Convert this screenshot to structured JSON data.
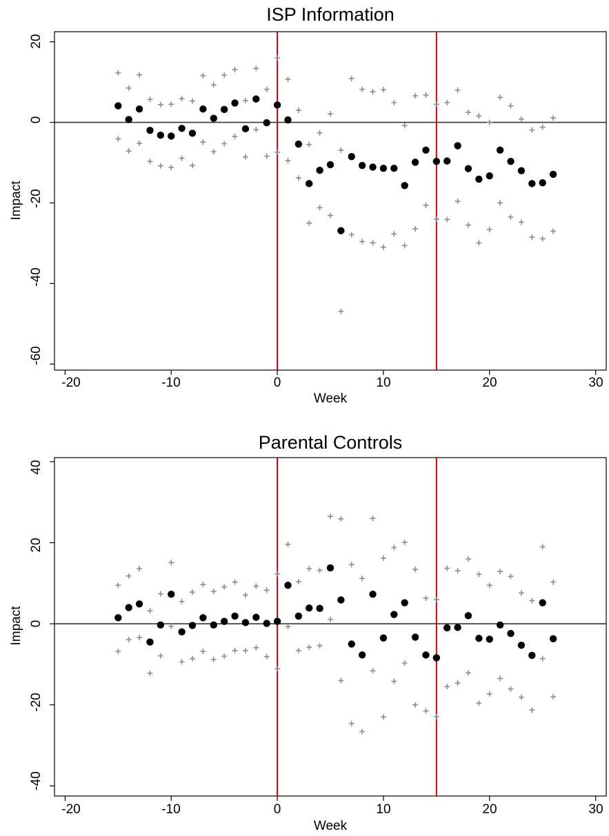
{
  "chart_data": [
    {
      "type": "scatter",
      "title": "ISP Information",
      "xlabel": "Week",
      "ylabel": "Impact",
      "xlim": [
        -21,
        31
      ],
      "ylim": [
        -61.5,
        22.5
      ],
      "xticks": [
        -20,
        -10,
        0,
        10,
        20,
        30
      ],
      "xtick_labels": [
        "-20",
        "-10",
        "0",
        "10",
        "20",
        "30"
      ],
      "yticks": [
        20,
        0,
        -20,
        -40,
        -60
      ],
      "ytick_labels": [
        "20",
        "0",
        "-20",
        "-40",
        "-60"
      ],
      "grid": false,
      "reference_lines": {
        "horizontal_y": 0,
        "vertical_x": [
          0,
          15
        ],
        "vertical_color": "#cc0000"
      },
      "colors": {
        "estimate": "#000000",
        "interval": "#8c8c8c"
      },
      "x": [
        -15,
        -14,
        -13,
        -12,
        -11,
        -10,
        -9,
        -8,
        -7,
        -6,
        -5,
        -4,
        -3,
        -2,
        -1,
        0,
        1,
        2,
        3,
        4,
        5,
        6,
        7,
        8,
        9,
        10,
        11,
        12,
        13,
        14,
        15,
        16,
        17,
        18,
        19,
        20,
        21,
        22,
        23,
        24,
        25,
        26
      ],
      "series": [
        {
          "role": "estimate",
          "marker": "dot",
          "values": [
            4.1,
            0.7,
            3.3,
            -2.0,
            -3.2,
            -3.4,
            -1.5,
            -2.7,
            3.3,
            1.0,
            3.2,
            4.8,
            -1.6,
            5.8,
            -0.1,
            4.3,
            0.6,
            -5.4,
            -15.2,
            -11.9,
            -10.5,
            -26.9,
            -8.5,
            -10.7,
            -11.1,
            -11.4,
            -11.4,
            -15.7,
            -9.9,
            -6.9,
            -9.7,
            -9.6,
            -5.8,
            -11.5,
            -14.1,
            -13.3,
            -6.9,
            -9.7,
            -12.0,
            -15.2,
            -15.0,
            -12.9
          ]
        },
        {
          "role": "upper-bound",
          "marker": "plus",
          "values": [
            12.3,
            8.5,
            11.8,
            5.7,
            4.4,
            4.5,
            5.9,
            5.3,
            11.6,
            9.3,
            11.7,
            13.1,
            5.4,
            13.4,
            8.2,
            16.0,
            10.7,
            3.0,
            -5.5,
            -2.6,
            2.1,
            -6.9,
            10.9,
            8.2,
            7.6,
            8.1,
            4.9,
            -0.8,
            6.6,
            6.8,
            4.5,
            4.9,
            8.0,
            2.5,
            1.6,
            0.0,
            6.2,
            4.1,
            0.8,
            -1.9,
            -1.2,
            1.1
          ]
        },
        {
          "role": "lower-bound",
          "marker": "plus",
          "values": [
            -4.1,
            -7.1,
            -5.2,
            -9.7,
            -10.8,
            -11.2,
            -8.9,
            -10.7,
            -4.9,
            -7.3,
            -5.3,
            -3.5,
            -8.6,
            -1.8,
            -8.4,
            -7.4,
            -9.5,
            -13.8,
            -25.0,
            -21.2,
            -23.1,
            -46.9,
            -27.9,
            -29.6,
            -29.9,
            -31.0,
            -27.7,
            -30.6,
            -26.4,
            -20.6,
            -24.0,
            -24.1,
            -19.6,
            -25.5,
            -29.9,
            -26.6,
            -20.0,
            -23.5,
            -24.8,
            -28.5,
            -28.9,
            -27.0
          ]
        }
      ]
    },
    {
      "type": "scatter",
      "title": "Parental Controls",
      "xlabel": "Week",
      "ylabel": "Impact",
      "xlim": [
        -21,
        31
      ],
      "ylim": [
        -42.5,
        41.0
      ],
      "xticks": [
        -20,
        -10,
        0,
        10,
        20,
        30
      ],
      "xtick_labels": [
        "-20",
        "-10",
        "0",
        "10",
        "20",
        "30"
      ],
      "yticks": [
        40,
        20,
        0,
        -20,
        -40
      ],
      "ytick_labels": [
        "40",
        "20",
        "0",
        "-20",
        "-40"
      ],
      "grid": false,
      "reference_lines": {
        "horizontal_y": 0,
        "vertical_x": [
          0,
          15
        ],
        "vertical_color": "#cc0000"
      },
      "colors": {
        "estimate": "#000000",
        "interval": "#8c8c8c"
      },
      "x": [
        -15,
        -14,
        -13,
        -12,
        -11,
        -10,
        -9,
        -8,
        -7,
        -6,
        -5,
        -4,
        -3,
        -2,
        -1,
        0,
        1,
        2,
        3,
        4,
        5,
        6,
        7,
        8,
        9,
        10,
        11,
        12,
        13,
        14,
        15,
        16,
        17,
        18,
        19,
        20,
        21,
        22,
        23,
        24,
        25,
        26
      ],
      "series": [
        {
          "role": "estimate",
          "marker": "dot",
          "values": [
            1.5,
            4.0,
            4.9,
            -4.5,
            -0.3,
            7.3,
            -2.0,
            -0.4,
            1.5,
            -0.3,
            0.6,
            1.9,
            0.3,
            1.6,
            0.1,
            0.6,
            9.5,
            1.9,
            3.9,
            3.8,
            13.8,
            5.9,
            -5.0,
            -7.7,
            7.3,
            -3.5,
            2.3,
            5.2,
            -3.3,
            -7.7,
            -8.4,
            -1.0,
            -0.9,
            2.0,
            -3.6,
            -3.8,
            -0.3,
            -2.4,
            -5.3,
            -7.8,
            5.2,
            -3.7
          ]
        },
        {
          "role": "upper-bound",
          "marker": "plus",
          "values": [
            9.5,
            11.8,
            13.6,
            3.2,
            7.4,
            15.1,
            5.5,
            7.8,
            9.7,
            8.0,
            9.1,
            10.3,
            7.1,
            9.3,
            8.3,
            12.3,
            19.6,
            10.4,
            13.6,
            13.2,
            26.5,
            25.9,
            14.6,
            11.2,
            26.0,
            16.2,
            18.8,
            20.1,
            13.4,
            6.3,
            6.0,
            13.7,
            13.1,
            16.0,
            12.2,
            9.5,
            12.9,
            11.7,
            7.6,
            5.7,
            19.0,
            10.3
          ]
        },
        {
          "role": "lower-bound",
          "marker": "plus",
          "values": [
            -6.8,
            -3.9,
            -3.4,
            -12.2,
            -7.9,
            -0.6,
            -9.4,
            -8.6,
            -6.8,
            -8.8,
            -8.0,
            -6.6,
            -6.6,
            -5.9,
            -8.1,
            -11.1,
            -0.7,
            -6.6,
            -5.8,
            -5.4,
            1.1,
            -14.0,
            -24.6,
            -26.6,
            -11.6,
            -23.0,
            -14.2,
            -9.7,
            -20.0,
            -21.5,
            -22.9,
            -15.5,
            -14.6,
            -12.1,
            -19.6,
            -17.3,
            -13.5,
            -16.1,
            -18.1,
            -21.3,
            -8.6,
            -18.0
          ]
        }
      ]
    }
  ]
}
